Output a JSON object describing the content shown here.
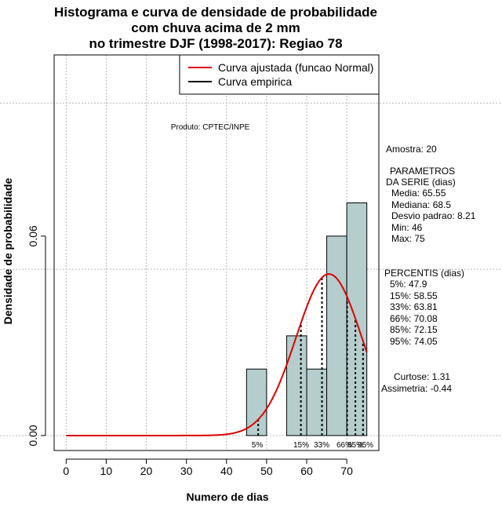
{
  "title": {
    "line1": "Histograma e curva de densidade de probabilidade",
    "line2": "com chuva acima de 2 mm",
    "line3": "no trimestre DJF (1998-2017): Regiao 78"
  },
  "product_label": "Produto: CPTEC/INPE",
  "stats": {
    "amostra": "Amostra: 20",
    "parametros_title1": "PARAMETROS",
    "parametros_title2": "DA SERIE (dias)",
    "media": "Media: 65.55",
    "mediana": "Mediana: 68.5",
    "desvio": "Desvio padrao: 8.21",
    "min": "Min: 46",
    "max": "Max: 75",
    "percentis_title": "PERCENTIS (dias)",
    "p5": "5%: 47.9",
    "p15": "15%: 58.55",
    "p33": "33%: 63.81",
    "p66": "66%: 70.08",
    "p85": "85%: 72.15",
    "p95": "95%: 74.05",
    "curtose": "Curtose: 1.31",
    "assimetria": "Assimetria: -0.44"
  },
  "chart_data": {
    "type": "bar",
    "xlabel": "Numero de dias",
    "ylabel": "Densidade de probabilidade",
    "xlim": [
      -3,
      78
    ],
    "ylim": [
      -0.0045,
      0.1145
    ],
    "x_ticks": [
      0,
      10,
      20,
      30,
      40,
      50,
      60,
      70
    ],
    "x_tick_labels": [
      "0",
      "10",
      "20",
      "30",
      "40",
      "50",
      "60",
      "70"
    ],
    "y_ticks": [
      0.0,
      0.06
    ],
    "y_tick_labels": [
      "0.00",
      "0.06"
    ],
    "grid": true,
    "bins": [
      {
        "from": 45,
        "to": 50,
        "density": 0.02
      },
      {
        "from": 50,
        "to": 55,
        "density": 0.0
      },
      {
        "from": 55,
        "to": 60,
        "density": 0.03
      },
      {
        "from": 60,
        "to": 65,
        "density": 0.02
      },
      {
        "from": 65,
        "to": 70,
        "density": 0.06
      },
      {
        "from": 70,
        "to": 75,
        "density": 0.07
      }
    ],
    "bar_color": "#b5cdcd",
    "fitted_curve": {
      "name": "Curva ajustada (funcao Normal)",
      "mean": 65.55,
      "sd": 8.21,
      "color": "#dd0000",
      "x_range": [
        0,
        75
      ]
    },
    "empirical_curve": {
      "name": "Curva empirica",
      "color": "#000000"
    },
    "percentiles": [
      {
        "label": "5%",
        "value": 47.9
      },
      {
        "label": "15%",
        "value": 58.55
      },
      {
        "label": "33%",
        "value": 63.81
      },
      {
        "label": "66%",
        "value": 70.08
      },
      {
        "label": "85%",
        "value": 72.15
      },
      {
        "label": "95%",
        "value": 74.05
      }
    ],
    "legend_position": "top-right"
  }
}
